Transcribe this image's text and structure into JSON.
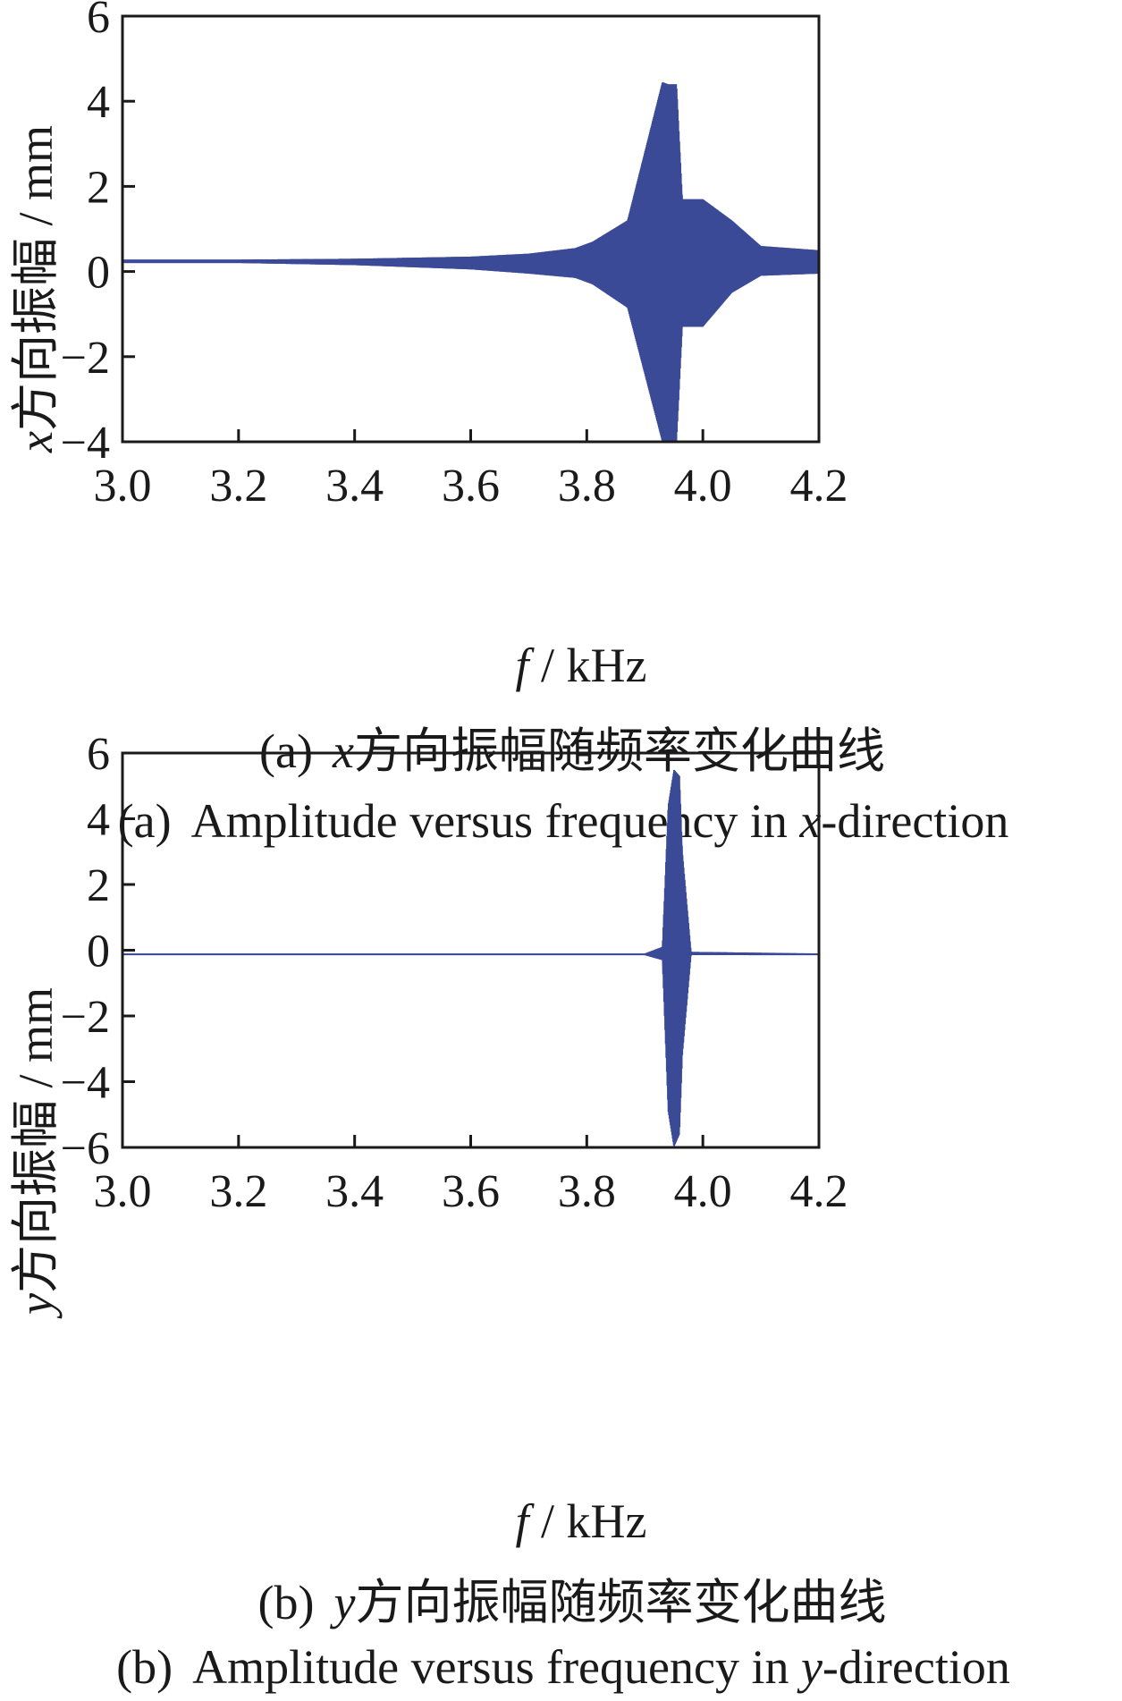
{
  "chart_data": [
    {
      "type": "line",
      "panel": "a",
      "xlabel_italic": "f",
      "xlabel_rest": " / kHz",
      "ylabel_var": "x",
      "ylabel_rest": "方向振幅 / mm",
      "caption_cn_prefix": "(a)",
      "caption_cn_var": "x",
      "caption_cn_rest": "方向振幅随频率变化曲线",
      "caption_en_prefix": "(a)",
      "caption_en_main": "Amplitude versus frequency in ",
      "caption_en_var": "x",
      "caption_en_suffix": "-direction",
      "xlim": [
        3.0,
        4.2
      ],
      "ylim": [
        -4,
        6
      ],
      "xticks": [
        "3.0",
        "3.2",
        "3.4",
        "3.6",
        "3.8",
        "4.0",
        "4.2"
      ],
      "yticks": [
        "6",
        "4",
        "2",
        "0",
        "−2",
        "−4"
      ],
      "grid": false,
      "color": "#3b4a96",
      "series": [
        {
          "x": [
            3.0,
            3.2,
            3.4,
            3.6,
            3.7,
            3.78,
            3.81,
            3.87,
            3.93,
            3.94,
            3.955,
            3.965,
            4.0,
            4.05,
            4.1,
            4.2
          ],
          "y_upper": [
            0.28,
            0.28,
            0.3,
            0.35,
            0.42,
            0.55,
            0.7,
            1.2,
            4.45,
            4.4,
            4.4,
            1.7,
            1.7,
            1.2,
            0.6,
            0.5
          ],
          "y_lower": [
            0.2,
            0.2,
            0.15,
            0.05,
            -0.05,
            -0.15,
            -0.3,
            -0.85,
            -4.0,
            -4.0,
            -4.0,
            -1.3,
            -1.3,
            -0.5,
            -0.1,
            -0.05
          ]
        }
      ]
    },
    {
      "type": "line",
      "panel": "b",
      "xlabel_italic": "f",
      "xlabel_rest": " / kHz",
      "ylabel_var": "y",
      "ylabel_rest": "方向振幅 / mm",
      "caption_cn_prefix": "(b)",
      "caption_cn_var": "y",
      "caption_cn_rest": "方向振幅随频率变化曲线",
      "caption_en_prefix": "(b)",
      "caption_en_main": "Amplitude versus frequency in ",
      "caption_en_var": "y",
      "caption_en_suffix": "-direction",
      "xlim": [
        3.0,
        4.2
      ],
      "ylim": [
        -6,
        6
      ],
      "xticks": [
        "3.0",
        "3.2",
        "3.4",
        "3.6",
        "3.8",
        "4.0",
        "4.2"
      ],
      "yticks": [
        "6",
        "4",
        "2",
        "0",
        "−2",
        "−4",
        "−6"
      ],
      "grid": false,
      "color": "#3b4a96",
      "series": [
        {
          "x": [
            3.0,
            3.9,
            3.93,
            3.94,
            3.95,
            3.96,
            3.965,
            3.98,
            4.2
          ],
          "y_upper": [
            -0.1,
            -0.1,
            0.1,
            4.4,
            5.5,
            5.3,
            3.0,
            -0.05,
            -0.1
          ],
          "y_lower": [
            -0.15,
            -0.15,
            -0.3,
            -4.9,
            -6.0,
            -5.6,
            -3.2,
            -0.15,
            -0.15
          ]
        }
      ]
    }
  ]
}
